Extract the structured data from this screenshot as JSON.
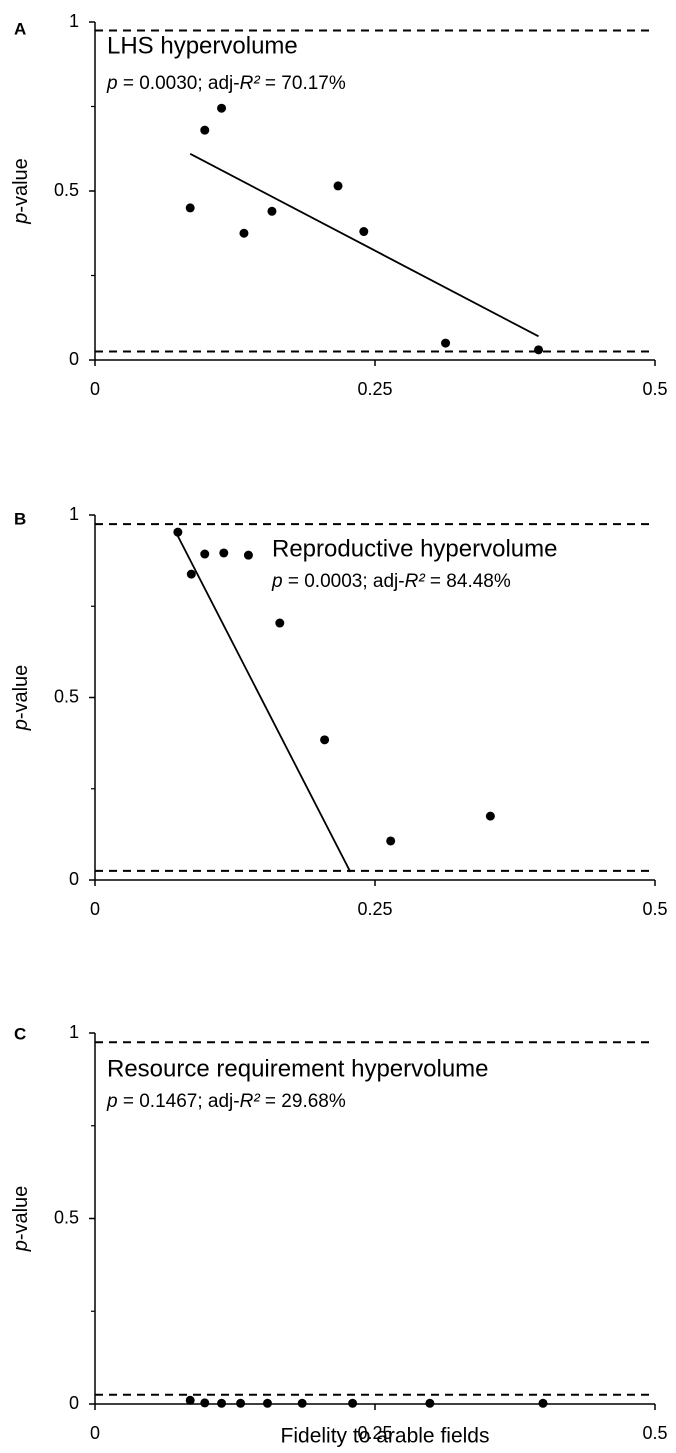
{
  "chart_data": [
    {
      "type": "scatter",
      "panel": "A",
      "title": "LHS hypervolume",
      "annotation": [
        "p",
        " = 0.0030; adj-",
        "R²",
        " = 70.17%"
      ],
      "ylabel": [
        "p",
        "-value"
      ],
      "x": [
        0.085,
        0.098,
        0.113,
        0.133,
        0.158,
        0.217,
        0.24,
        0.313,
        0.396
      ],
      "y": [
        0.45,
        0.68,
        0.745,
        0.375,
        0.44,
        0.515,
        0.38,
        0.05,
        0.03
      ],
      "fit_line": {
        "x": [
          0.085,
          0.396
        ],
        "y": [
          0.61,
          0.07
        ]
      },
      "thresholds": [
        0.025,
        0.975
      ],
      "xlim": [
        0,
        0.5
      ],
      "xticks": [
        0,
        0.25,
        0.5
      ],
      "ylim": [
        0,
        1
      ],
      "yticks": [
        0,
        0.5,
        1
      ],
      "yminor": [
        0.25,
        0.75
      ],
      "color": "#000000"
    },
    {
      "type": "scatter",
      "panel": "B",
      "title": "Reproductive hypervolume",
      "annotation": [
        "p",
        " = 0.0003; adj-",
        "R²",
        " = 84.48%"
      ],
      "ylabel": [
        "p",
        "-value"
      ],
      "x": [
        0.074,
        0.086,
        0.098,
        0.115,
        0.137,
        0.165,
        0.205,
        0.264,
        0.353
      ],
      "y": [
        0.953,
        0.838,
        0.893,
        0.896,
        0.89,
        0.704,
        0.384,
        0.107,
        0.175
      ],
      "fit_line": {
        "x": [
          0.071,
          0.228
        ],
        "y": [
          0.96,
          0.022
        ]
      },
      "thresholds": [
        0.025,
        0.975
      ],
      "xlim": [
        0,
        0.5
      ],
      "xticks": [
        0,
        0.25,
        0.5
      ],
      "ylim": [
        0,
        1
      ],
      "yticks": [
        0,
        0.5,
        1
      ],
      "yminor": [
        0.25,
        0.75
      ],
      "color": "#000000"
    },
    {
      "type": "scatter",
      "panel": "C",
      "title": "Resource requirement hypervolume",
      "annotation": [
        "p",
        " = 0.1467; adj-",
        "R²",
        " = 29.68%"
      ],
      "ylabel": [
        "p",
        "-value"
      ],
      "xlabel": "Fidelity to arable fields",
      "x": [
        0.085,
        0.098,
        0.113,
        0.13,
        0.154,
        0.185,
        0.23,
        0.299,
        0.4
      ],
      "y": [
        0.01,
        0.003,
        0.002,
        0.002,
        0.002,
        0.002,
        0.002,
        0.002,
        0.002
      ],
      "thresholds": [
        0.025,
        0.975
      ],
      "xlim": [
        0,
        0.5
      ],
      "xticks": [
        0,
        0.25,
        0.5
      ],
      "ylim": [
        0,
        1
      ],
      "yticks": [
        0,
        0.5,
        1
      ],
      "yminor": [
        0.25,
        0.75
      ],
      "color": "#000000"
    }
  ]
}
